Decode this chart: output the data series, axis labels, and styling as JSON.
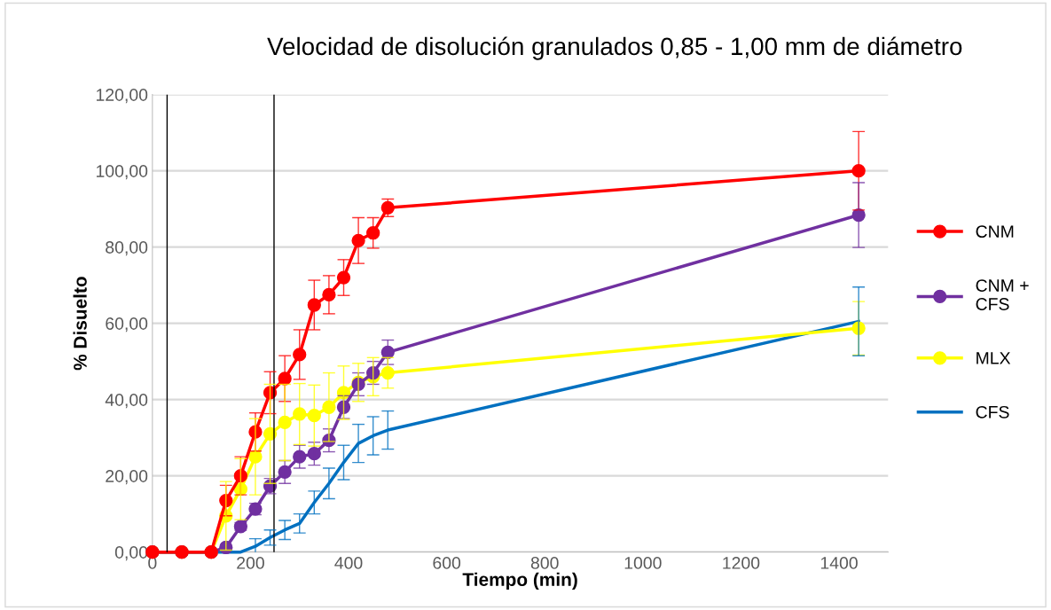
{
  "chart_data": {
    "type": "line",
    "title": "Velocidad de disolución granulados 0,85 - 1,00 mm de diámetro",
    "xlabel": "Tiempo (min)",
    "ylabel": "% Disuelto",
    "x": [
      0,
      60,
      120,
      150,
      180,
      210,
      240,
      270,
      300,
      330,
      360,
      390,
      420,
      450,
      480,
      1440
    ],
    "xlim": [
      0,
      1500
    ],
    "xticks": [
      0,
      200,
      400,
      600,
      800,
      1000,
      1200,
      1400
    ],
    "ylim": [
      0,
      120
    ],
    "yticks": [
      {
        "value": 0,
        "label": "0,00"
      },
      {
        "value": 20,
        "label": "20,00"
      },
      {
        "value": 40,
        "label": "40,00"
      },
      {
        "value": 60,
        "label": "60,00"
      },
      {
        "value": 80,
        "label": "80,00"
      },
      {
        "value": 100,
        "label": "100,00"
      },
      {
        "value": 120,
        "label": "120,00"
      }
    ],
    "grid": "y",
    "legend": "right",
    "line_style": "solid",
    "series": [
      {
        "name": "CNM",
        "color": "#ff0000",
        "marker": "circle",
        "values": [
          0,
          0,
          0,
          13.5,
          20,
          31.5,
          41.8,
          45.5,
          51.8,
          64.8,
          67.5,
          72,
          81.7,
          83.7,
          90.3,
          100
        ],
        "errors": [
          null,
          null,
          null,
          4,
          5,
          5,
          5.5,
          6,
          6.5,
          6.5,
          5,
          4.7,
          6,
          4,
          2.3,
          10.3
        ]
      },
      {
        "name": "CNM + CFS",
        "color": "#7030a0",
        "marker": "circle",
        "values": [
          0,
          0,
          0,
          1.2,
          6.7,
          11.3,
          17.3,
          21,
          25,
          25.8,
          29.3,
          38,
          44,
          47,
          52.4,
          88.4
        ],
        "errors": [
          null,
          null,
          null,
          null,
          1,
          1.5,
          2,
          3,
          3,
          3,
          3,
          3,
          3,
          3,
          3.2,
          8.5
        ]
      },
      {
        "name": "MLX",
        "color": "#ffff00",
        "marker": "circle",
        "values": [
          0,
          0,
          0,
          9.5,
          16.5,
          25,
          31,
          34,
          36.2,
          35.8,
          38,
          41.8,
          44.5,
          46,
          47,
          58.7
        ],
        "errors": [
          null,
          null,
          null,
          9,
          8,
          10,
          13,
          10,
          8,
          8,
          9,
          7,
          5,
          5,
          4,
          7
        ]
      },
      {
        "name": "CFS",
        "color": "#0070c0",
        "marker": "none",
        "values": [
          0,
          0,
          0,
          0,
          0,
          1.5,
          3.8,
          5.8,
          7.5,
          13,
          18,
          23.5,
          28.5,
          30.5,
          32,
          60.5
        ],
        "errors": [
          null,
          null,
          null,
          null,
          null,
          2,
          2,
          2.5,
          2.5,
          3,
          4,
          4.5,
          5,
          5,
          5,
          9
        ]
      }
    ],
    "ref_lines": [
      {
        "axis": "x",
        "value": 30,
        "color": "#000000"
      },
      {
        "axis": "x",
        "value": 248,
        "color": "#000000"
      }
    ]
  }
}
